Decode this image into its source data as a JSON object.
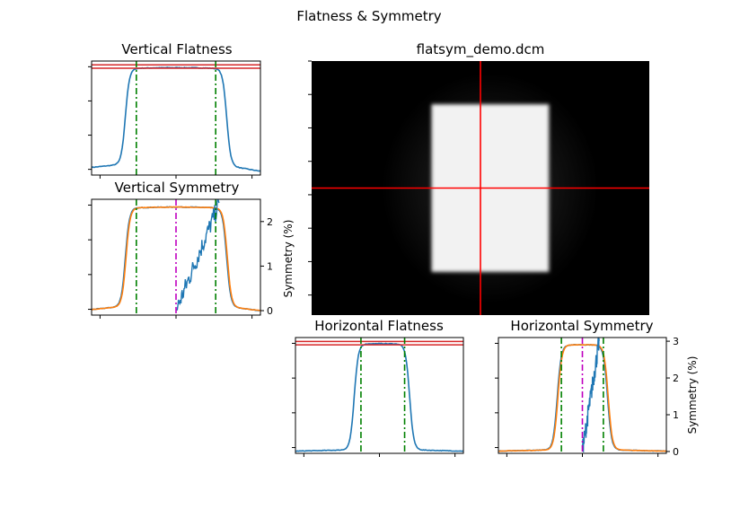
{
  "figure": {
    "title": "Flatness & Symmetry"
  },
  "colors": {
    "profile": "#1f77b4",
    "mirror": "#ff7f0e",
    "limit": "#d62728",
    "edge": "#008000",
    "center": "#bf00bf",
    "crosshair": "#ff0000"
  },
  "chart_data": [
    {
      "id": "image",
      "type": "heatmap",
      "title": "flatsym_demo.dcm",
      "field_rect": {
        "x0": 0.355,
        "x1": 0.703,
        "y0": 0.17,
        "y1": 0.83
      },
      "crosshair": {
        "x": 0.5,
        "y": 0.5
      },
      "colormap": "gray"
    },
    {
      "id": "vertical-flatness",
      "type": "line",
      "title": "Vertical Flatness",
      "xlim": [
        0,
        1
      ],
      "ylim": [
        0,
        1.04
      ],
      "profile": {
        "low": 0.06,
        "high": 0.98,
        "left_edge": 0.2,
        "right_edge": 0.8,
        "noise": 0.006,
        "base_left": 0.07,
        "base_right": 0.035
      },
      "limit_lines": [
        0.975,
        1.005
      ],
      "edge_lines": [
        0.265,
        0.735
      ],
      "ticks_x": 3,
      "ticks_y": 4
    },
    {
      "id": "vertical-symmetry",
      "type": "line",
      "title": "Vertical Symmetry",
      "ylabel_right": "Symmetry (%)",
      "right_ticks": [
        "0",
        "1",
        "2"
      ],
      "xlim": [
        0,
        1
      ],
      "ylim": [
        0,
        1.04
      ],
      "ylim_right": [
        -0.1,
        2.5
      ],
      "profile": {
        "low": 0.05,
        "high": 0.97,
        "left_edge": 0.2,
        "right_edge": 0.8,
        "noise": 0.006,
        "base_left": 0.05,
        "base_right": 0.04
      },
      "mirror": true,
      "symmetry_curve": {
        "x_start": 0.5,
        "x_end": 0.755,
        "y_start": 0.0,
        "y_end": 2.4
      },
      "edge_lines": [
        0.265,
        0.735
      ],
      "center_line": 0.5,
      "ticks_x": 3,
      "ticks_y": 4
    },
    {
      "id": "horizontal-flatness",
      "type": "line",
      "title": "Horizontal Flatness",
      "xlim": [
        0,
        1
      ],
      "ylim": [
        0,
        1.04
      ],
      "profile": {
        "low": 0.02,
        "high": 0.985,
        "left_edge": 0.35,
        "right_edge": 0.68,
        "noise": 0.005,
        "base_left": 0.02,
        "base_right": 0.02
      },
      "limit_lines": [
        0.975,
        1.005
      ],
      "edge_lines": [
        0.39,
        0.65
      ],
      "ticks_x": 3,
      "ticks_y": 4
    },
    {
      "id": "horizontal-symmetry",
      "type": "line",
      "title": "Horizontal Symmetry",
      "ylabel_right": "Symmetry (%)",
      "right_ticks": [
        "0",
        "1",
        "2",
        "3"
      ],
      "xlim": [
        0,
        1
      ],
      "ylim": [
        0,
        1.04
      ],
      "ylim_right": [
        -0.05,
        3.1
      ],
      "profile": {
        "low": 0.02,
        "high": 0.975,
        "left_edge": 0.35,
        "right_edge": 0.65,
        "noise": 0.005,
        "base_left": 0.02,
        "base_right": 0.02
      },
      "mirror": true,
      "symmetry_curve": {
        "x_start": 0.5,
        "x_end": 0.6,
        "y_start": 0.0,
        "y_end": 3.0
      },
      "edge_lines": [
        0.375,
        0.625
      ],
      "center_line": 0.5,
      "ticks_x": 3,
      "ticks_y": 4
    }
  ]
}
